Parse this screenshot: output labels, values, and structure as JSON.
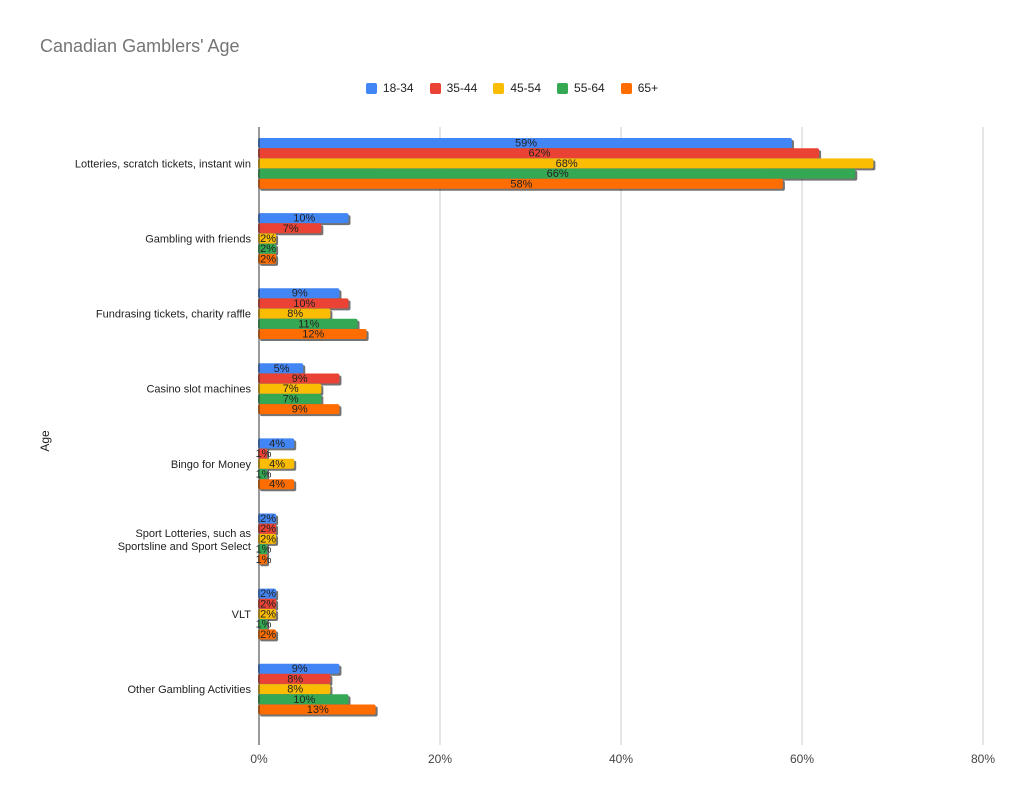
{
  "chart_data": {
    "type": "bar",
    "orientation": "horizontal",
    "title": "Canadian Gamblers' Age",
    "xlabel": "",
    "ylabel": "Age",
    "xlim": [
      0,
      80
    ],
    "xticks": [
      "0%",
      "20%",
      "40%",
      "60%",
      "80%"
    ],
    "xtick_values": [
      0,
      20,
      40,
      60,
      80
    ],
    "grid": true,
    "legend_position": "top",
    "categories": [
      "Lotteries, scratch tickets, instant win",
      "Gambling with friends",
      "Fundrasing tickets, charity raffle",
      "Casino slot machines",
      "Bingo for Money",
      "Sport Lotteries, such as Sportsline and Sport Select",
      "VLT",
      "Other Gambling Activities"
    ],
    "series": [
      {
        "name": "18-34",
        "color": "#4285f4",
        "values": [
          59,
          10,
          9,
          5,
          4,
          2,
          2,
          9
        ]
      },
      {
        "name": "35-44",
        "color": "#ea4335",
        "values": [
          62,
          7,
          10,
          9,
          1,
          2,
          2,
          8
        ]
      },
      {
        "name": "45-54",
        "color": "#fbbc04",
        "values": [
          68,
          2,
          8,
          7,
          4,
          2,
          2,
          8
        ]
      },
      {
        "name": "55-64",
        "color": "#34a853",
        "values": [
          66,
          2,
          11,
          7,
          1,
          1,
          1,
          10
        ]
      },
      {
        "name": "65+",
        "color": "#ff6d01",
        "values": [
          58,
          2,
          12,
          9,
          4,
          1,
          2,
          13
        ]
      }
    ]
  }
}
